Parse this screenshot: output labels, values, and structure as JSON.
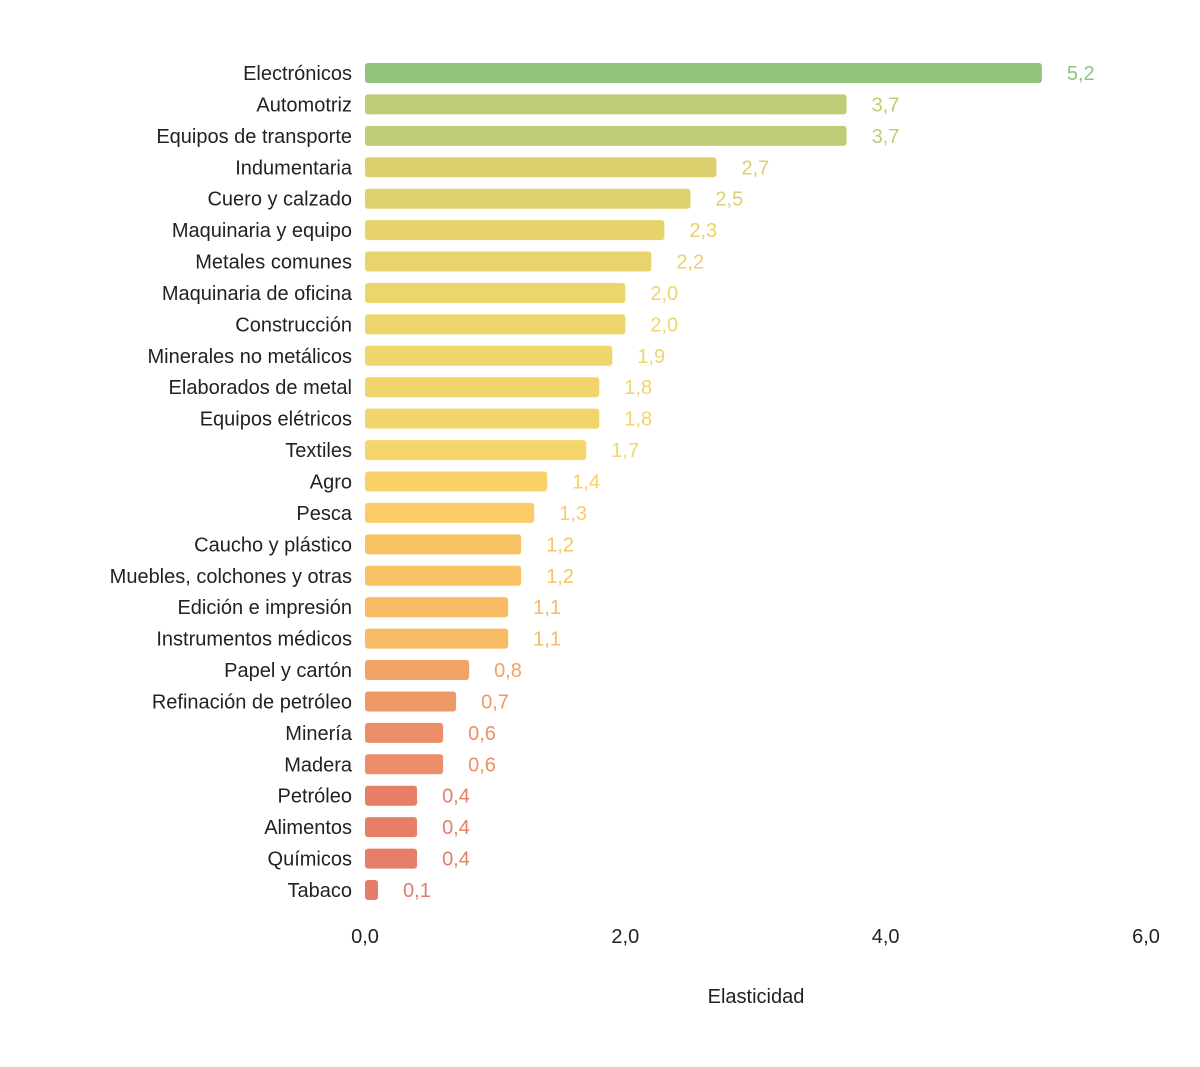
{
  "chart_data": {
    "type": "bar",
    "orientation": "horizontal",
    "title": "",
    "xlabel": "Elasticidad",
    "ylabel": "",
    "xlim": [
      0,
      6
    ],
    "xticks": [
      "0,0",
      "2,0",
      "4,0",
      "6,0"
    ],
    "xtick_values": [
      0,
      2,
      4,
      6
    ],
    "grid": false,
    "categories": [
      "Electrónicos",
      "Automotriz",
      "Equipos de transporte",
      "Indumentaria",
      "Cuero y calzado",
      "Maquinaria y equipo",
      "Metales comunes",
      "Maquinaria de oficina",
      "Construcción",
      "Minerales no metálicos",
      "Elaborados de metal",
      "Equipos elétricos",
      "Textiles",
      "Agro",
      "Pesca",
      "Caucho y plástico",
      "Muebles, colchones y otras",
      "Edición e impresión",
      "Instrumentos médicos",
      "Papel y cartón",
      "Refinación de petróleo",
      "Minería",
      "Madera",
      "Petróleo",
      "Alimentos",
      "Químicos",
      "Tabaco"
    ],
    "values": [
      5.2,
      3.7,
      3.7,
      2.7,
      2.5,
      2.3,
      2.2,
      2.0,
      2.0,
      1.9,
      1.8,
      1.8,
      1.7,
      1.4,
      1.3,
      1.2,
      1.2,
      1.1,
      1.1,
      0.8,
      0.7,
      0.6,
      0.6,
      0.4,
      0.4,
      0.4,
      0.1
    ],
    "value_labels": [
      "5,2",
      "3,7",
      "3,7",
      "2,7",
      "2,5",
      "2,3",
      "2,2",
      "2,0",
      "2,0",
      "1,9",
      "1,8",
      "1,8",
      "1,7",
      "1,4",
      "1,3",
      "1,2",
      "1,2",
      "1,1",
      "1,1",
      "0,8",
      "0,7",
      "0,6",
      "0,6",
      "0,4",
      "0,4",
      "0,4",
      "0,1"
    ],
    "colors": [
      "#90c47b",
      "#bfcc76",
      "#bfcc76",
      "#dcd06e",
      "#ddd06e",
      "#e6d36c",
      "#e8d36c",
      "#ecd56b",
      "#ecd56b",
      "#efd66b",
      "#f1d56b",
      "#f1d56b",
      "#f4d56b",
      "#f9d169",
      "#facb66",
      "#f8c364",
      "#f8c364",
      "#f6bb63",
      "#f6bb63",
      "#f0a365",
      "#ee9a66",
      "#ec8f68",
      "#ec8f68",
      "#e67e68",
      "#e67e68",
      "#e67e68",
      "#e57c6a"
    ]
  }
}
